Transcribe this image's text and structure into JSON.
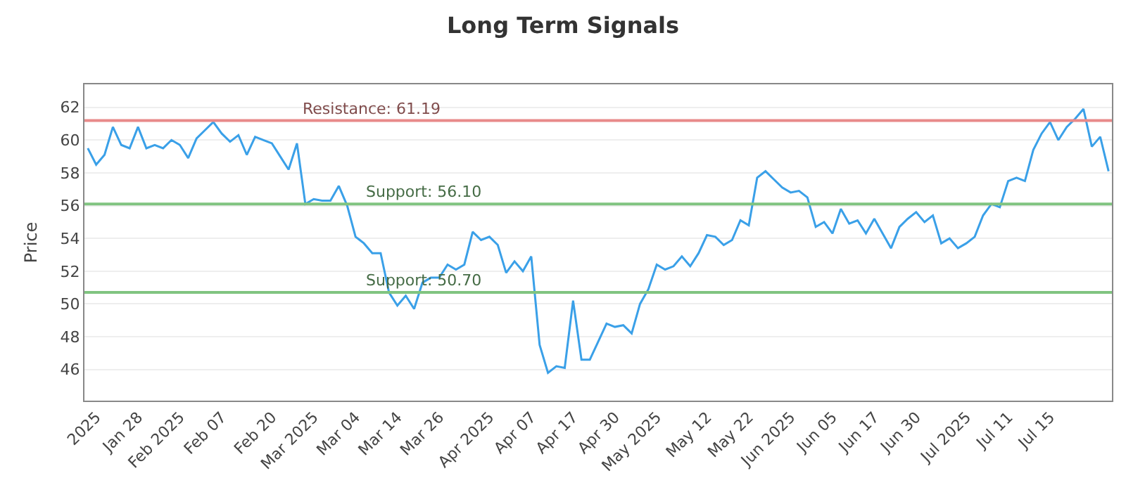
{
  "chart_data": {
    "type": "line",
    "title": "Long Term Signals",
    "ylabel": "Price",
    "categories": [
      null,
      "2025",
      null,
      null,
      null,
      null,
      "Jan 28",
      null,
      null,
      null,
      null,
      "Feb 2025",
      null,
      null,
      null,
      null,
      "Feb 07",
      null,
      null,
      null,
      null,
      null,
      "Feb 20",
      null,
      null,
      null,
      null,
      "Mar 2025",
      null,
      null,
      null,
      null,
      "Mar 04",
      null,
      null,
      null,
      null,
      "Mar 14",
      null,
      null,
      null,
      null,
      "Mar 26",
      null,
      null,
      null,
      null,
      null,
      "Apr 2025",
      null,
      null,
      null,
      null,
      "Apr 07",
      null,
      null,
      null,
      null,
      "Apr 17",
      null,
      null,
      null,
      null,
      "Apr 30",
      null,
      null,
      null,
      null,
      "May 2025",
      null,
      null,
      null,
      null,
      null,
      "May 12",
      null,
      null,
      null,
      null,
      "May 22",
      null,
      null,
      null,
      null,
      "Jun 2025",
      null,
      null,
      null,
      null,
      "Jun 05",
      null,
      null,
      null,
      null,
      "Jun 17",
      null,
      null,
      null,
      null,
      "Jun 30",
      null,
      null,
      null,
      null,
      null,
      "Jul 2025",
      null,
      null,
      null,
      null,
      "Jul 11",
      null,
      null,
      null,
      null,
      "Jul 15",
      null,
      null,
      null,
      null,
      null,
      null,
      null
    ],
    "series": [
      {
        "color": "#3aa0e8",
        "values": [
          59.5,
          58.5,
          59.1,
          60.8,
          59.7,
          59.5,
          60.8,
          59.5,
          59.7,
          59.5,
          60.0,
          59.7,
          58.9,
          60.1,
          60.6,
          61.1,
          60.4,
          59.9,
          60.3,
          59.1,
          60.2,
          60.0,
          59.8,
          59.0,
          58.2,
          59.8,
          56.1,
          56.4,
          56.3,
          56.3,
          57.2,
          56.0,
          54.1,
          53.7,
          53.1,
          53.1,
          50.7,
          49.9,
          50.5,
          49.7,
          51.3,
          51.6,
          51.6,
          52.4,
          52.1,
          52.4,
          54.4,
          53.9,
          54.1,
          53.6,
          51.9,
          52.6,
          52.0,
          52.9,
          47.5,
          45.8,
          46.2,
          46.1,
          50.2,
          46.6,
          46.6,
          47.7,
          48.8,
          48.6,
          48.7,
          48.2,
          50.0,
          50.9,
          52.4,
          52.1,
          52.3,
          52.9,
          52.3,
          53.1,
          54.2,
          54.1,
          53.6,
          53.9,
          55.1,
          54.8,
          57.7,
          58.1,
          57.6,
          57.1,
          56.8,
          56.9,
          56.5,
          54.7,
          55.0,
          54.3,
          55.8,
          54.9,
          55.1,
          54.3,
          55.2,
          54.3,
          53.4,
          54.7,
          55.2,
          55.6,
          55.0,
          55.4,
          53.7,
          54.0,
          53.4,
          53.7,
          54.1,
          55.4,
          56.1,
          55.9,
          57.5,
          57.7,
          57.5,
          59.4,
          60.4,
          61.1,
          60.0,
          60.8,
          61.3,
          61.9,
          59.6,
          60.2,
          58.1
        ]
      }
    ],
    "ylim": [
      44.1,
      63.4
    ],
    "yticks": [
      46,
      48,
      50,
      52,
      54,
      56,
      58,
      60,
      62
    ],
    "ref_lines": [
      {
        "axis": "y",
        "value": 61.19,
        "label": "Resistance: 61.19",
        "color": "#e88a8a"
      },
      {
        "axis": "y",
        "value": 56.1,
        "label": "Support: 56.10",
        "color": "#80c480"
      },
      {
        "axis": "y",
        "value": 50.7,
        "label": "Support: 50.70",
        "color": "#80c480"
      }
    ],
    "grid": "y",
    "marker": "none",
    "line_style": "solid"
  }
}
